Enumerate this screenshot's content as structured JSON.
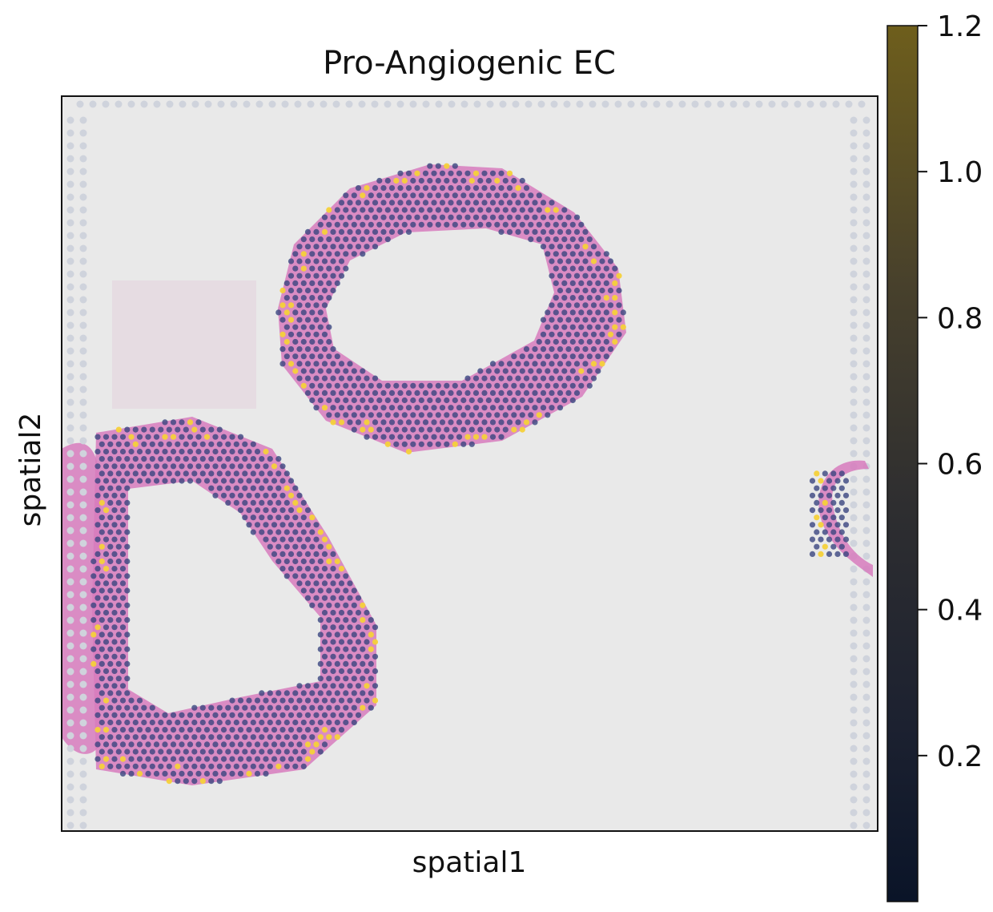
{
  "chart_data": {
    "type": "scatter",
    "subtype": "spatial-transcriptomics-overlay",
    "title": "Pro-Angiogenic EC",
    "xlabel": "spatial1",
    "ylabel": "spatial2",
    "x_ticks": [],
    "y_ticks": [],
    "grid": false,
    "legend": "none",
    "background": "H&E tissue image with gray capture-spot grid",
    "colorbar": {
      "placement": "right",
      "colormap": "cividis-like dark (dark navy to olive)",
      "vmin": 0,
      "vmax": 1.2,
      "tick_labels": [
        "0.2",
        "0.4",
        "0.6",
        "0.8",
        "1.0",
        "1.2"
      ],
      "tick_values": [
        0.2,
        0.4,
        0.6,
        0.8,
        1.0,
        1.2
      ],
      "low_color": "#0a1428",
      "high_color": "#6e5e1c"
    },
    "regions": [
      {
        "name": "upper ring section",
        "typical_value": 0.35,
        "hotspot_value": 1.2,
        "hotspots_at": "outer edge (top-right, bottom)"
      },
      {
        "name": "lower-left ring section",
        "typical_value": 0.35,
        "hotspot_value": 1.2,
        "hotspots_at": "outer edge (bottom-left, right)"
      },
      {
        "name": "right-edge tissue fragment",
        "typical_value": 0.4,
        "hotspot_value": 1.2,
        "hotspots_at": "left edge"
      }
    ],
    "colors": {
      "spot_low": "#3a4580",
      "spot_high": "#f5d13a",
      "tissue": "#d77bbd",
      "panel_bg": "#e9e9e9",
      "fiducial": "#cfd3dc"
    }
  }
}
